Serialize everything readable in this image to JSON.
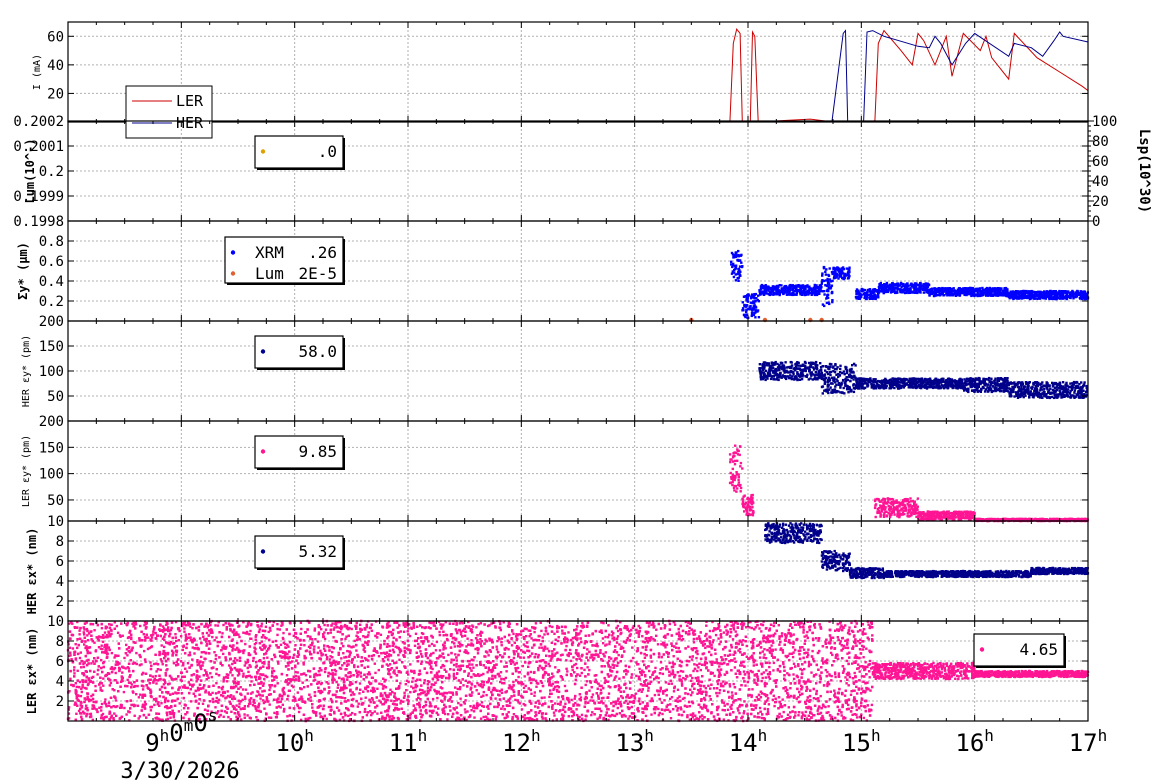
{
  "x_ticks": {
    "labels": [
      "9h0m0s",
      "10h",
      "11h",
      "12h",
      "13h",
      "14h",
      "15h",
      "16h",
      "17h"
    ],
    "hours": [
      9,
      10,
      11,
      12,
      13,
      14,
      15,
      16,
      17
    ],
    "date": "3/30/2026"
  },
  "colors": {
    "ler": "#cc0000",
    "her": "#00008b",
    "pink": "#ff1493",
    "blue": "#0000ff",
    "navy": "#00008b",
    "orange": "#e06030",
    "gold": "#e0a000"
  },
  "chart_data": [
    {
      "type": "line",
      "name": "beam-current",
      "ylabel": "I (mA)",
      "ylim": [
        0,
        70
      ],
      "yticks": [
        "20",
        "40",
        "60"
      ],
      "yticks_v": [
        20,
        40,
        60
      ],
      "x_range_hours": [
        8,
        17
      ],
      "legend": {
        "placement": "top-left",
        "entries": [
          "LER",
          "HER"
        ]
      },
      "series": [
        {
          "name": "LER",
          "color": "#cc0000",
          "x": [
            8.0,
            13.84,
            13.87,
            13.9,
            13.93,
            13.95,
            14.02,
            14.04,
            14.06,
            14.09,
            14.11,
            14.3,
            14.55,
            14.75,
            14.95,
            15.0,
            15.08,
            15.12,
            15.15,
            15.2,
            15.35,
            15.45,
            15.5,
            15.55,
            15.65,
            15.75,
            15.8,
            15.9,
            16.05,
            16.1,
            16.15,
            16.3,
            16.35,
            16.55,
            16.75,
            16.95,
            17.0
          ],
          "y": [
            0,
            0,
            55,
            65,
            62,
            0,
            0,
            63,
            60,
            0,
            0,
            1,
            2,
            0,
            0,
            0,
            0,
            1,
            55,
            64,
            50,
            40,
            62,
            57,
            40,
            60,
            32,
            62,
            50,
            60,
            45,
            30,
            62,
            45,
            35,
            25,
            22
          ]
        },
        {
          "name": "HER",
          "color": "#00008b",
          "x": [
            8.0,
            14.74,
            14.84,
            14.86,
            14.88,
            15.02,
            15.05,
            15.1,
            15.2,
            15.5,
            15.6,
            15.65,
            15.7,
            15.8,
            15.92,
            16.0,
            16.3,
            16.35,
            16.5,
            16.6,
            16.7,
            16.75,
            16.78,
            17.0
          ],
          "y": [
            0,
            0,
            62,
            64,
            0,
            0,
            63,
            64,
            60,
            53,
            52,
            60,
            55,
            40,
            55,
            62,
            46,
            55,
            52,
            46,
            57,
            63,
            60,
            56
          ]
        }
      ]
    },
    {
      "type": "scatter",
      "name": "luminosity",
      "ylabel": "Lum(10^-)",
      "ylim": [
        0.1998,
        0.2002
      ],
      "yticks": [
        "0.1998",
        "0.1999",
        "0.2",
        "0.2001",
        "0.2002"
      ],
      "yticks_v": [
        0.1998,
        0.1999,
        0.2,
        0.2001,
        0.2002
      ],
      "y2label": "Lsp(10^30)",
      "y2ticks": [
        "0",
        "20",
        "40",
        "60",
        "80",
        "100"
      ],
      "legend": {
        "placement": "top-left",
        "entries": [
          {
            "value": ".0",
            "color": "#e0a000"
          }
        ]
      },
      "series": []
    },
    {
      "type": "scatter",
      "name": "sigma-y",
      "ylabel": "Σy* (μm)",
      "ylim": [
        0,
        1.0
      ],
      "yticks": [
        "0.2",
        "0.4",
        "0.6",
        "0.8"
      ],
      "yticks_v": [
        0.2,
        0.4,
        0.6,
        0.8
      ],
      "legend": {
        "placement": "top-left",
        "entries": [
          {
            "label": "XRM",
            "value": ".26",
            "color": "#0000ff"
          },
          {
            "label": "Lum",
            "value": "2E-5",
            "color": "#e06030"
          }
        ]
      },
      "segments": [
        {
          "x0": 13.85,
          "x1": 13.95,
          "base": 0.55,
          "spread": 0.15,
          "color": "#0000ff"
        },
        {
          "x0": 13.95,
          "x1": 14.1,
          "base": 0.15,
          "spread": 0.12,
          "color": "#0000ff"
        },
        {
          "x0": 14.1,
          "x1": 14.65,
          "base": 0.31,
          "spread": 0.05,
          "color": "#0000ff"
        },
        {
          "x0": 14.65,
          "x1": 14.75,
          "base": 0.35,
          "spread": 0.2,
          "color": "#0000ff"
        },
        {
          "x0": 14.75,
          "x1": 14.9,
          "base": 0.48,
          "spread": 0.06,
          "color": "#0000ff"
        },
        {
          "x0": 14.95,
          "x1": 15.15,
          "base": 0.27,
          "spread": 0.05,
          "color": "#0000ff"
        },
        {
          "x0": 15.15,
          "x1": 15.6,
          "base": 0.33,
          "spread": 0.05,
          "color": "#0000ff"
        },
        {
          "x0": 15.6,
          "x1": 16.3,
          "base": 0.29,
          "spread": 0.04,
          "color": "#0000ff"
        },
        {
          "x0": 16.3,
          "x1": 17.0,
          "base": 0.26,
          "spread": 0.04,
          "color": "#0000ff"
        }
      ],
      "orange_points": {
        "x": [
          13.5,
          14.15,
          14.55,
          14.65
        ],
        "y": [
          0.0,
          0.0,
          0.0,
          0.0
        ]
      }
    },
    {
      "type": "scatter",
      "name": "her-emittance-y",
      "ylabel": "HER εy* (pm)",
      "ylim": [
        0,
        200
      ],
      "yticks": [
        "50",
        "100",
        "150",
        "200"
      ],
      "yticks_v": [
        50,
        100,
        150,
        200
      ],
      "legend": {
        "placement": "top-left",
        "entries": [
          {
            "value": "58.0",
            "color": "#00008b"
          }
        ]
      },
      "segments": [
        {
          "x0": 14.1,
          "x1": 14.65,
          "base": 100,
          "spread": 18,
          "color": "#00008b"
        },
        {
          "x0": 14.65,
          "x1": 14.95,
          "base": 85,
          "spread": 30,
          "color": "#00008b"
        },
        {
          "x0": 14.95,
          "x1": 15.9,
          "base": 75,
          "spread": 10,
          "color": "#00008b"
        },
        {
          "x0": 15.9,
          "x1": 16.3,
          "base": 72,
          "spread": 14,
          "color": "#00008b"
        },
        {
          "x0": 16.3,
          "x1": 17.0,
          "base": 62,
          "spread": 16,
          "color": "#00008b"
        }
      ]
    },
    {
      "type": "scatter",
      "name": "ler-emittance-y",
      "ylabel": "LER εy* (pm)",
      "ylim": [
        10,
        200
      ],
      "yticks": [
        "10",
        "50",
        "100",
        "150",
        "200"
      ],
      "yticks_v": [
        10,
        50,
        100,
        150,
        200
      ],
      "legend": {
        "placement": "top-left",
        "entries": [
          {
            "value": "9.85",
            "color": "#ff1493"
          }
        ]
      },
      "segments": [
        {
          "x0": 13.84,
          "x1": 13.95,
          "base": 110,
          "spread": 45,
          "color": "#ff1493"
        },
        {
          "x0": 13.95,
          "x1": 14.05,
          "base": 40,
          "spread": 20,
          "color": "#ff1493"
        },
        {
          "x0": 15.12,
          "x1": 15.5,
          "base": 35,
          "spread": 18,
          "color": "#ff1493"
        },
        {
          "x0": 15.5,
          "x1": 16.0,
          "base": 20,
          "spread": 8,
          "color": "#ff1493"
        },
        {
          "x0": 16.0,
          "x1": 17.0,
          "base": 12,
          "spread": 2,
          "color": "#ff1493"
        }
      ]
    },
    {
      "type": "scatter",
      "name": "her-emittance-x",
      "ylabel": "HER εx* (nm)",
      "ylim": [
        0,
        10
      ],
      "yticks": [
        "2",
        "4",
        "6",
        "8"
      ],
      "yticks_v": [
        2,
        4,
        6,
        8
      ],
      "legend": {
        "placement": "top-left",
        "entries": [
          {
            "value": "5.32",
            "color": "#00008b"
          }
        ]
      },
      "segments": [
        {
          "x0": 14.15,
          "x1": 14.65,
          "base": 8.8,
          "spread": 1.0,
          "color": "#00008b"
        },
        {
          "x0": 14.65,
          "x1": 14.9,
          "base": 6.0,
          "spread": 1.0,
          "color": "#00008b"
        },
        {
          "x0": 14.9,
          "x1": 15.2,
          "base": 4.8,
          "spread": 0.5,
          "color": "#00008b"
        },
        {
          "x0": 15.2,
          "x1": 16.5,
          "base": 4.7,
          "spread": 0.3,
          "color": "#00008b"
        },
        {
          "x0": 16.5,
          "x1": 17.0,
          "base": 5.0,
          "spread": 0.3,
          "color": "#00008b"
        }
      ]
    },
    {
      "type": "scatter",
      "name": "ler-emittance-x",
      "ylabel": "LER εx* (nm)",
      "ylim": [
        0,
        10
      ],
      "yticks": [
        "2",
        "4",
        "6",
        "8",
        "10"
      ],
      "yticks_v": [
        2,
        4,
        6,
        8,
        10
      ],
      "legend": {
        "placement": "top-right",
        "entries": [
          {
            "value": "4.65",
            "color": "#ff1493"
          }
        ]
      },
      "segments": [
        {
          "x0": 8.0,
          "x1": 15.1,
          "base": 5.0,
          "spread": 5.0,
          "color": "#ff1493"
        },
        {
          "x0": 15.1,
          "x1": 16.0,
          "base": 5.0,
          "spread": 0.8,
          "color": "#ff1493"
        },
        {
          "x0": 16.0,
          "x1": 17.0,
          "base": 4.7,
          "spread": 0.3,
          "color": "#ff1493"
        }
      ]
    }
  ]
}
